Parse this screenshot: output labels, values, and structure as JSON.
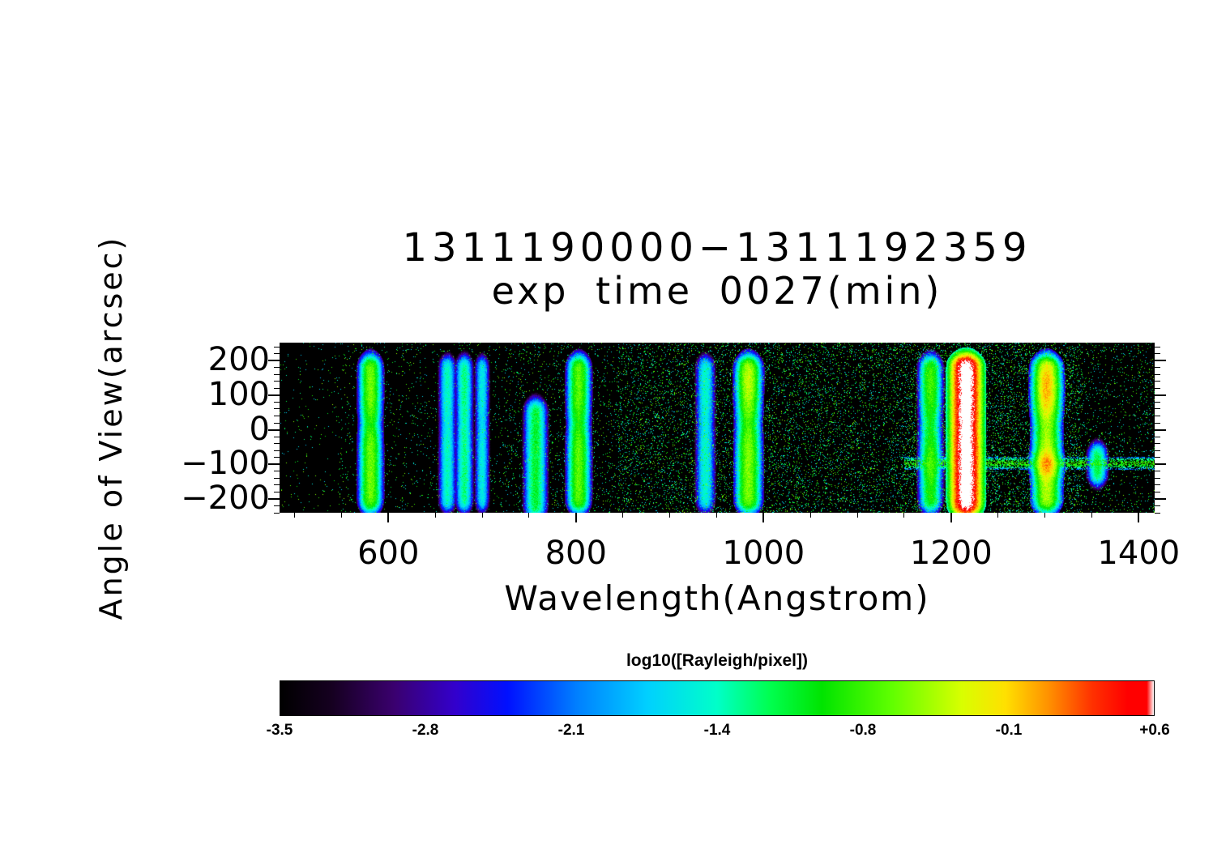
{
  "chart_data": {
    "type": "heatmap",
    "title_line1": "1311190000−1311192359",
    "title_line2": "exp time 0027(min)",
    "xlabel": "Wavelength(Angstrom)",
    "ylabel": "Angle of View(arcsec)",
    "xlim": [
      484,
      1417
    ],
    "ylim": [
      -240,
      252
    ],
    "grid": false,
    "x_ticks": [
      {
        "value": 600,
        "label": "600"
      },
      {
        "value": 800,
        "label": "800"
      },
      {
        "value": 1000,
        "label": "1000"
      },
      {
        "value": 1200,
        "label": "1200"
      },
      {
        "value": 1400,
        "label": "1400"
      }
    ],
    "y_ticks": [
      {
        "value": 200,
        "label": "200"
      },
      {
        "value": 100,
        "label": "100"
      },
      {
        "value": 0,
        "label": "0"
      },
      {
        "value": -100,
        "label": "−100"
      },
      {
        "value": -200,
        "label": "−200"
      }
    ],
    "colorbar": {
      "label": "log10([Rayleigh/pixel])",
      "min": -3.5,
      "max": 0.6,
      "ticks": [
        "-3.5",
        "-2.8",
        "-2.1",
        "-1.4",
        "-0.8",
        "-0.1",
        "+0.6"
      ]
    },
    "colormap_stops": [
      [
        0.0,
        "#000000"
      ],
      [
        0.06,
        "#160021"
      ],
      [
        0.13,
        "#3a006e"
      ],
      [
        0.2,
        "#3300cc"
      ],
      [
        0.26,
        "#0010ff"
      ],
      [
        0.34,
        "#0080ff"
      ],
      [
        0.42,
        "#00d0ff"
      ],
      [
        0.5,
        "#00ffc8"
      ],
      [
        0.56,
        "#00ff50"
      ],
      [
        0.62,
        "#00e400"
      ],
      [
        0.7,
        "#60ff00"
      ],
      [
        0.78,
        "#d8ff00"
      ],
      [
        0.83,
        "#ffe000"
      ],
      [
        0.88,
        "#ff9000"
      ],
      [
        0.93,
        "#ff3000"
      ],
      [
        0.97,
        "#ff0000"
      ],
      [
        0.992,
        "#ff0000"
      ],
      [
        1.0,
        "#ffffff"
      ]
    ],
    "emission_lines": [
      {
        "wavelength": 581,
        "sigma": 4.5,
        "peak": -0.6,
        "dip": 0.45
      },
      {
        "wavelength": 663,
        "sigma": 3.5,
        "peak": -1.45,
        "dip": 0.2
      },
      {
        "wavelength": 681,
        "sigma": 3.5,
        "peak": -1.3,
        "dip": 0.2
      },
      {
        "wavelength": 700,
        "sigma": 3.0,
        "peak": -1.6,
        "dip": 0.2
      },
      {
        "wavelength": 757,
        "sigma": 4.5,
        "peak": -1.1,
        "dip": 0.0,
        "ytop": 70,
        "ybot": -238
      },
      {
        "wavelength": 803,
        "sigma": 4.5,
        "peak": -0.65,
        "dip": 0.4
      },
      {
        "wavelength": 938,
        "sigma": 4.0,
        "peak": -1.5,
        "dip": 0.2
      },
      {
        "wavelength": 984,
        "sigma": 5.0,
        "peak": -0.55,
        "dip": 0.35,
        "hot_spots": [
          {
            "y": 150,
            "sy": 45,
            "boost": 0.6
          }
        ]
      },
      {
        "wavelength": 1178,
        "sigma": 4.5,
        "peak": -0.9,
        "dip": 0.25,
        "hot_spots": [
          {
            "y": 130,
            "sy": 50,
            "boost": 0.5
          },
          {
            "y": -100,
            "sy": 30,
            "boost": 0.6
          }
        ]
      },
      {
        "wavelength": 1216,
        "sigma": 6.5,
        "peak": 0.85,
        "dip": 0.05,
        "ytop": 200,
        "ybot": -230
      },
      {
        "wavelength": 1302,
        "sigma": 5.5,
        "peak": -0.4,
        "dip": 0.3,
        "hot_spots": [
          {
            "y": 120,
            "sy": 55,
            "boost": 1.6
          },
          {
            "y": -100,
            "sy": 22,
            "boost": 2.4
          }
        ]
      },
      {
        "wavelength": 1356,
        "sigma": 4.0,
        "peak": -1.15,
        "dip": 0.0,
        "ytop": -58,
        "ybot": -142
      }
    ],
    "noise": {
      "base_p": 0.02,
      "value": -1.15,
      "spread": 0.7,
      "regions": [
        {
          "x0": 484,
          "x1": 545,
          "p": 0.012
        },
        {
          "x0": 545,
          "x1": 725,
          "p": 0.03
        },
        {
          "x0": 725,
          "x1": 845,
          "p": 0.05
        },
        {
          "x0": 845,
          "x1": 1145,
          "p": 0.095
        },
        {
          "x0": 1145,
          "x1": 1340,
          "p": 0.125
        },
        {
          "x0": 1340,
          "x1": 1417,
          "p": 0.05
        }
      ]
    },
    "streak": {
      "x_start": 1150,
      "y_center": -97,
      "sigma_y": 7,
      "peak": -0.8,
      "density": 0.55
    }
  }
}
